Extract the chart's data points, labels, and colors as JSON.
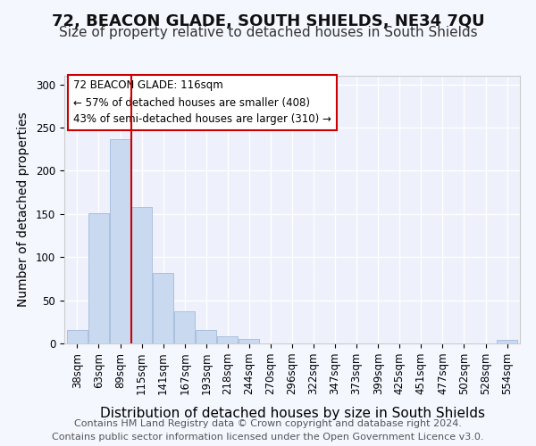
{
  "title1": "72, BEACON GLADE, SOUTH SHIELDS, NE34 7QU",
  "title2": "Size of property relative to detached houses in South Shields",
  "xlabel": "Distribution of detached houses by size in South Shields",
  "ylabel": "Number of detached properties",
  "bar_labels": [
    "38sqm",
    "63sqm",
    "89sqm",
    "115sqm",
    "141sqm",
    "167sqm",
    "193sqm",
    "218sqm",
    "244sqm",
    "270sqm",
    "296sqm",
    "322sqm",
    "347sqm",
    "373sqm",
    "399sqm",
    "425sqm",
    "451sqm",
    "477sqm",
    "502sqm",
    "528sqm",
    "554sqm"
  ],
  "bar_values": [
    15,
    151,
    237,
    158,
    82,
    37,
    16,
    8,
    5,
    0,
    0,
    0,
    0,
    0,
    0,
    0,
    0,
    0,
    0,
    0,
    4
  ],
  "bar_color": "#c9d9f0",
  "bar_edge_color": "#aac0df",
  "vline_x_index": 2.5,
  "vline_color": "#cc0000",
  "annotation_line1": "72 BEACON GLADE: 116sqm",
  "annotation_line2": "← 57% of detached houses are smaller (408)",
  "annotation_line3": "43% of semi-detached houses are larger (310) →",
  "annotation_box_edge": "#cc0000",
  "ylim": [
    0,
    310
  ],
  "yticks": [
    0,
    50,
    100,
    150,
    200,
    250,
    300
  ],
  "background_color": "#eef1fb",
  "grid_color": "#ffffff",
  "footer_text": "Contains HM Land Registry data © Crown copyright and database right 2024.\nContains public sector information licensed under the Open Government Licence v3.0.",
  "title1_fontsize": 13,
  "title2_fontsize": 11,
  "xlabel_fontsize": 11,
  "ylabel_fontsize": 10,
  "tick_fontsize": 8.5,
  "footer_fontsize": 8
}
